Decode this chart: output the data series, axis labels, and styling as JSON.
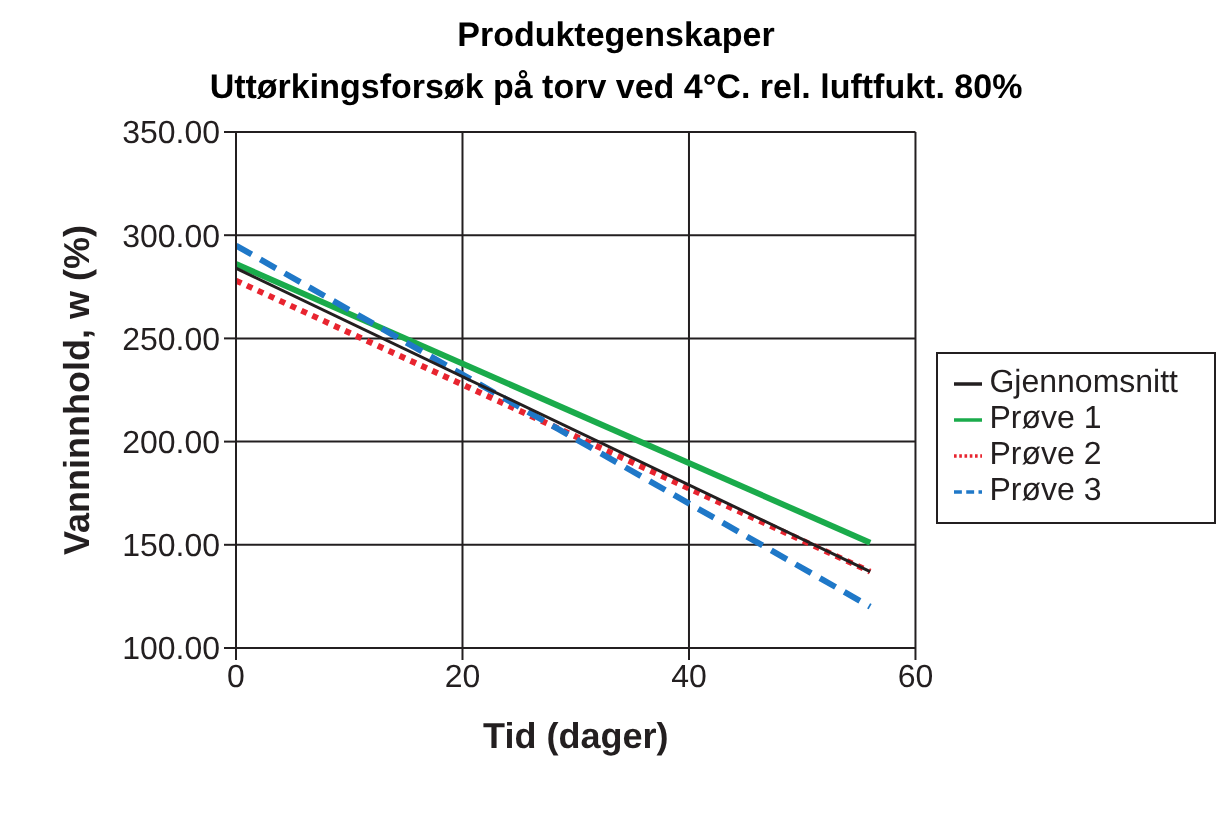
{
  "chart_data": {
    "type": "line",
    "title": "Produktegenskaper",
    "subtitle": "Uttørkingsforsøk på torv ved 4°C. rel. luftfukt. 80%",
    "xlabel": "Tid (dager)",
    "ylabel": "Vanninnhold, w (%)",
    "x": [
      0,
      56
    ],
    "series": [
      {
        "name": "Prøve 1",
        "color": "#1aab4b",
        "values": [
          286,
          151
        ],
        "line_style": "solid"
      },
      {
        "name": "Prøve 2",
        "color": "#e8242f",
        "values": [
          278,
          137
        ],
        "line_style": "dotted"
      },
      {
        "name": "Prøve 3",
        "color": "#1f78c8",
        "values": [
          295,
          120
        ],
        "line_style": "dashed"
      },
      {
        "name": "Gjennomsnitt",
        "color": "#231f20",
        "values": [
          284,
          137
        ],
        "line_style": "solid"
      }
    ],
    "xlim": [
      0,
      60
    ],
    "xticks": [
      0,
      20,
      40,
      60
    ],
    "ylim": [
      100,
      350
    ],
    "yticks": [
      {
        "value": 100,
        "label": "100.00"
      },
      {
        "value": 150,
        "label": "150.00"
      },
      {
        "value": 200,
        "label": "200.00"
      },
      {
        "value": 250,
        "label": "250.00"
      },
      {
        "value": 300,
        "label": "300.00"
      },
      {
        "value": 350,
        "label": "350.00"
      }
    ],
    "grid": true,
    "legend": "right",
    "marker": "none"
  }
}
